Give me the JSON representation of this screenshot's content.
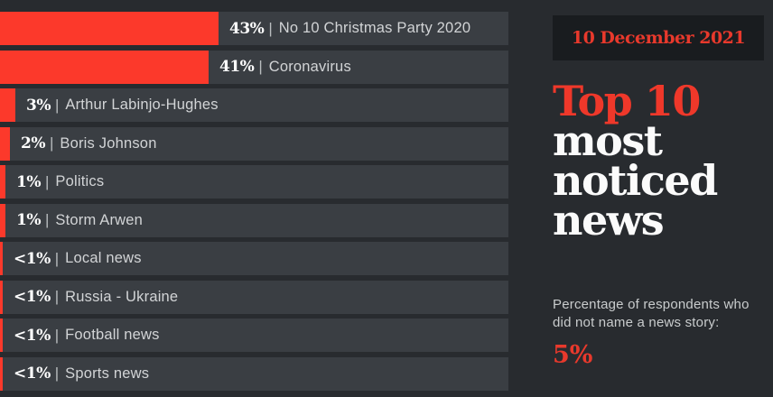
{
  "colors": {
    "background": "#282b2f",
    "bar_track": "#3a3e43",
    "bar_fill_red": "#fc392b",
    "accent_red": "#ef382a",
    "badge_background": "#191c1f",
    "label_gray": "#d2d4d6",
    "white": "#fbfbfb"
  },
  "chart_data": {
    "type": "bar",
    "orientation": "horizontal",
    "title": "Top 10 most noticed news",
    "date": "10 December 2021",
    "xlim": [
      0,
      100
    ],
    "grid": false,
    "legend": false,
    "separator": "|",
    "categories": [
      "No 10 Christmas Party 2020",
      "Coronavirus",
      "Arthur Labinjo-Hughes",
      "Boris Johnson",
      "Politics",
      "Storm Arwen",
      "Local news",
      "Russia - Ukraine",
      "Football news",
      "Sports news"
    ],
    "values": [
      43,
      41,
      3,
      2,
      1,
      1,
      0.5,
      0.5,
      0.5,
      0.5
    ],
    "bars": [
      {
        "label": "No 10 Christmas Party 2020",
        "value": 43,
        "value_label": "43%"
      },
      {
        "label": "Coronavirus",
        "value": 41,
        "value_label": "41%"
      },
      {
        "label": "Arthur Labinjo-Hughes",
        "value": 3,
        "value_label": "3%"
      },
      {
        "label": "Boris Johnson",
        "value": 2,
        "value_label": "2%"
      },
      {
        "label": "Politics",
        "value": 1,
        "value_label": "1%"
      },
      {
        "label": "Storm Arwen",
        "value": 1,
        "value_label": "1%"
      },
      {
        "label": "Local news",
        "value": 0.5,
        "value_label": "<1%"
      },
      {
        "label": "Russia - Ukraine",
        "value": 0.5,
        "value_label": "<1%"
      },
      {
        "label": "Football news",
        "value": 0.5,
        "value_label": "<1%"
      },
      {
        "label": "Sports news",
        "value": 0.5,
        "value_label": "<1%"
      }
    ],
    "annotation": {
      "text": "Percentage of respondents who did not name a news story:",
      "value": "5%"
    }
  },
  "panel": {
    "date": "10 December 2021",
    "title_accent": "Top 10",
    "title_lines": [
      "most",
      "noticed",
      "news"
    ],
    "note": "Percentage of respondents who did not name a news story:",
    "no_answer_value": "5%"
  }
}
